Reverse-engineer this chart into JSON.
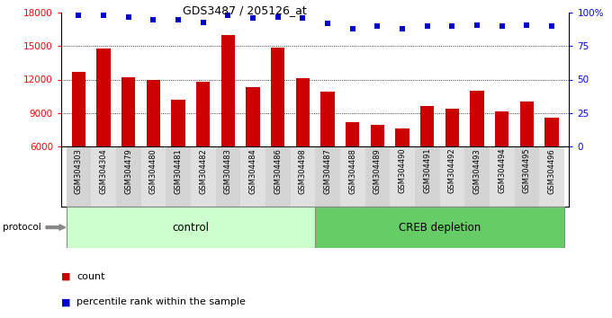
{
  "title": "GDS3487 / 205126_at",
  "samples": [
    "GSM304303",
    "GSM304304",
    "GSM304479",
    "GSM304480",
    "GSM304481",
    "GSM304482",
    "GSM304483",
    "GSM304484",
    "GSM304486",
    "GSM304498",
    "GSM304487",
    "GSM304488",
    "GSM304489",
    "GSM304490",
    "GSM304491",
    "GSM304492",
    "GSM304493",
    "GSM304494",
    "GSM304495",
    "GSM304496"
  ],
  "counts": [
    12700,
    14800,
    12200,
    12000,
    10200,
    11800,
    16000,
    11300,
    14900,
    12100,
    10900,
    8200,
    7900,
    7600,
    9600,
    9400,
    11000,
    9100,
    10000,
    8600
  ],
  "percentile_ranks": [
    98,
    98,
    97,
    95,
    95,
    93,
    98,
    96,
    97,
    96,
    92,
    88,
    90,
    88,
    90,
    90,
    91,
    90,
    91,
    90
  ],
  "bar_color": "#cc0000",
  "dot_color": "#0000cc",
  "control_color": "#ccffcc",
  "creb_color": "#66cc66",
  "control_label": "control",
  "creb_label": "CREB depletion",
  "control_indices": [
    0,
    9
  ],
  "creb_indices": [
    10,
    19
  ],
  "ylim_left": [
    6000,
    18000
  ],
  "ylim_right": [
    0,
    100
  ],
  "yticks_left": [
    6000,
    9000,
    12000,
    15000,
    18000
  ],
  "yticks_right": [
    0,
    25,
    50,
    75,
    100
  ],
  "yticklabels_right": [
    "0",
    "25",
    "50",
    "75",
    "100%"
  ],
  "legend_count_label": "count",
  "legend_pct_label": "percentile rank within the sample",
  "protocol_label": "protocol",
  "bg_colors": [
    "#d4d4d4",
    "#e0e0e0"
  ]
}
